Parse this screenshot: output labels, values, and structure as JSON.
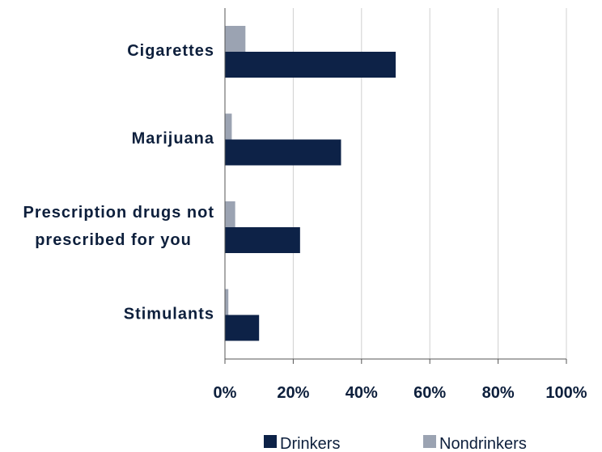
{
  "chart_data": {
    "type": "bar",
    "orientation": "horizontal",
    "categories": [
      [
        "Cigarettes"
      ],
      [
        "Marijuana"
      ],
      [
        "Prescription drugs not",
        "prescribed for you"
      ],
      [
        "Stimulants"
      ]
    ],
    "series": [
      {
        "name": "Drinkers",
        "color": "#0d2247",
        "values": [
          50,
          34,
          22,
          10
        ]
      },
      {
        "name": "Nondrinkers",
        "color": "#9ba3b2",
        "values": [
          6,
          2,
          3,
          1
        ]
      }
    ],
    "xlim": [
      0,
      100
    ],
    "xticks": [
      0,
      20,
      40,
      60,
      80,
      100
    ],
    "tick_suffix": "%",
    "grid": true,
    "legend": "bottom"
  }
}
